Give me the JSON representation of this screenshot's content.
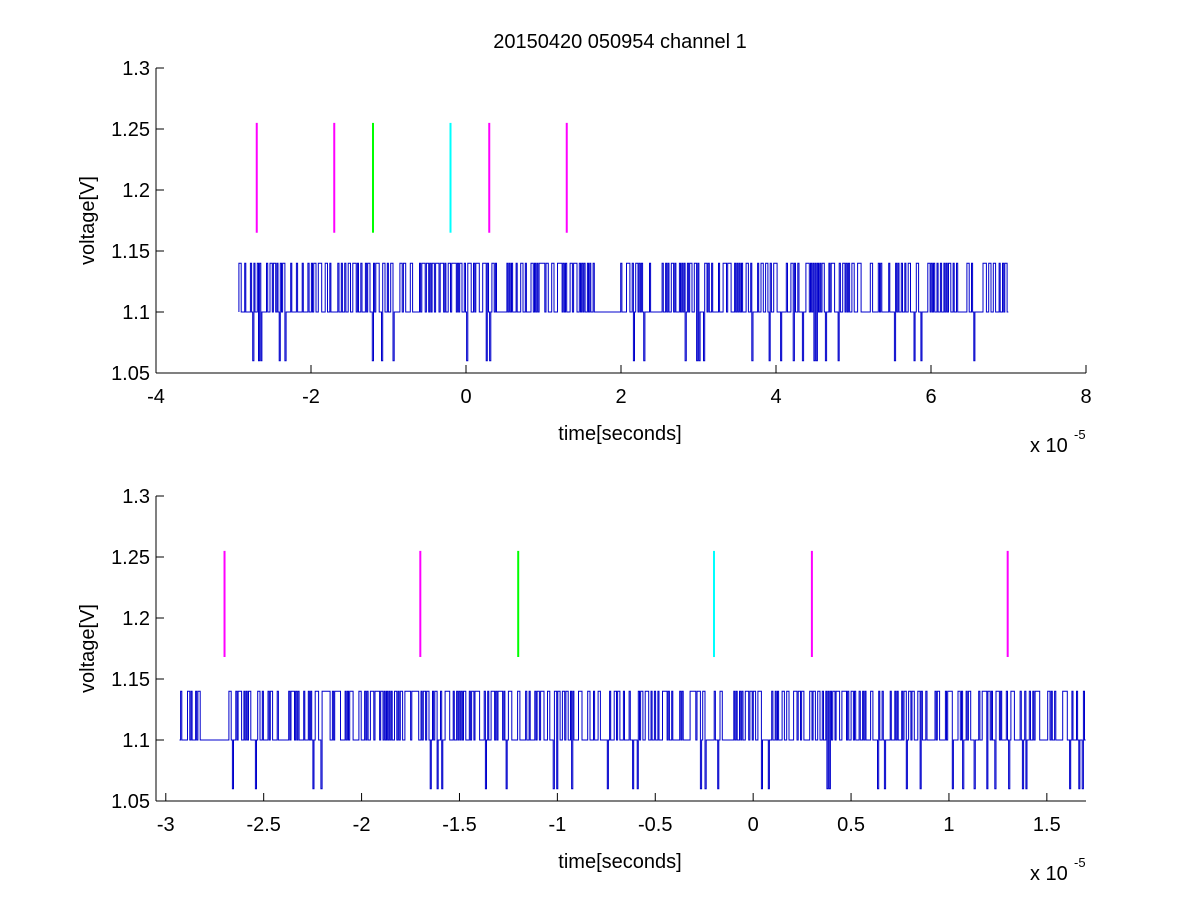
{
  "figure": {
    "title": "20150420 050954 channel 1"
  },
  "chart_data": [
    {
      "type": "line",
      "title": "20150420 050954 channel 1",
      "xlabel": "time[seconds]",
      "ylabel": "voltage[V]",
      "x_multiplier_label": "x 10",
      "x_multiplier_exponent": "-5",
      "xlim": [
        -4,
        8
      ],
      "ylim": [
        1.05,
        1.3
      ],
      "xticks": [
        -4,
        -2,
        0,
        2,
        4,
        6,
        8
      ],
      "xtick_labels": [
        "-4",
        "-2",
        "0",
        "2",
        "4",
        "6",
        "8"
      ],
      "yticks": [
        1.05,
        1.1,
        1.15,
        1.2,
        1.25,
        1.3
      ],
      "ytick_labels": [
        "1.05",
        "1.1",
        "1.15",
        "1.2",
        "1.25",
        "1.3"
      ],
      "grid": false,
      "signal": {
        "color": "#0000cc",
        "x_start": -2.93,
        "x_end": 7.0,
        "levels": [
          1.06,
          1.1,
          1.14
        ],
        "baseline": 1.1,
        "description_levels": "quantized voltage trace toggling between 1.06, 1.10 and 1.14 V",
        "quiet_intervals": [
          [
            1.65,
            1.95
          ]
        ]
      },
      "markers": [
        {
          "x": -2.7,
          "y0": 1.165,
          "y1": 1.255,
          "color": "#ff00ff"
        },
        {
          "x": -1.7,
          "y0": 1.165,
          "y1": 1.255,
          "color": "#ff00ff"
        },
        {
          "x": -1.2,
          "y0": 1.165,
          "y1": 1.255,
          "color": "#00ff00"
        },
        {
          "x": -0.2,
          "y0": 1.165,
          "y1": 1.255,
          "color": "#00ffff"
        },
        {
          "x": 0.3,
          "y0": 1.165,
          "y1": 1.255,
          "color": "#ff00ff"
        },
        {
          "x": 1.3,
          "y0": 1.165,
          "y1": 1.255,
          "color": "#ff00ff"
        }
      ]
    },
    {
      "type": "line",
      "title": "",
      "xlabel": "time[seconds]",
      "ylabel": "voltage[V]",
      "x_multiplier_label": "x 10",
      "x_multiplier_exponent": "-5",
      "xlim": [
        -3.05,
        1.7
      ],
      "ylim": [
        1.05,
        1.3
      ],
      "xticks": [
        -3,
        -2.5,
        -2,
        -1.5,
        -1,
        -0.5,
        0,
        0.5,
        1,
        1.5
      ],
      "xtick_labels": [
        "-3",
        "-2.5",
        "-2",
        "-1.5",
        "-1",
        "-0.5",
        "0",
        "0.5",
        "1",
        "1.5"
      ],
      "yticks": [
        1.05,
        1.1,
        1.15,
        1.2,
        1.25,
        1.3
      ],
      "ytick_labels": [
        "1.05",
        "1.1",
        "1.15",
        "1.2",
        "1.25",
        "1.3"
      ],
      "grid": false,
      "signal": {
        "color": "#0000cc",
        "x_start": -2.93,
        "x_end": 1.7,
        "levels": [
          1.06,
          1.1,
          1.14
        ],
        "baseline": 1.1,
        "description_levels": "zoomed view of the same quantized voltage trace",
        "quiet_intervals": [
          [
            -2.83,
            -2.68
          ]
        ]
      },
      "markers": [
        {
          "x": -2.7,
          "y0": 1.168,
          "y1": 1.255,
          "color": "#ff00ff"
        },
        {
          "x": -1.7,
          "y0": 1.168,
          "y1": 1.255,
          "color": "#ff00ff"
        },
        {
          "x": -1.2,
          "y0": 1.168,
          "y1": 1.255,
          "color": "#00ff00"
        },
        {
          "x": -0.2,
          "y0": 1.168,
          "y1": 1.255,
          "color": "#00ffff"
        },
        {
          "x": 0.3,
          "y0": 1.168,
          "y1": 1.255,
          "color": "#ff00ff"
        },
        {
          "x": 1.3,
          "y0": 1.168,
          "y1": 1.255,
          "color": "#ff00ff"
        }
      ]
    }
  ]
}
